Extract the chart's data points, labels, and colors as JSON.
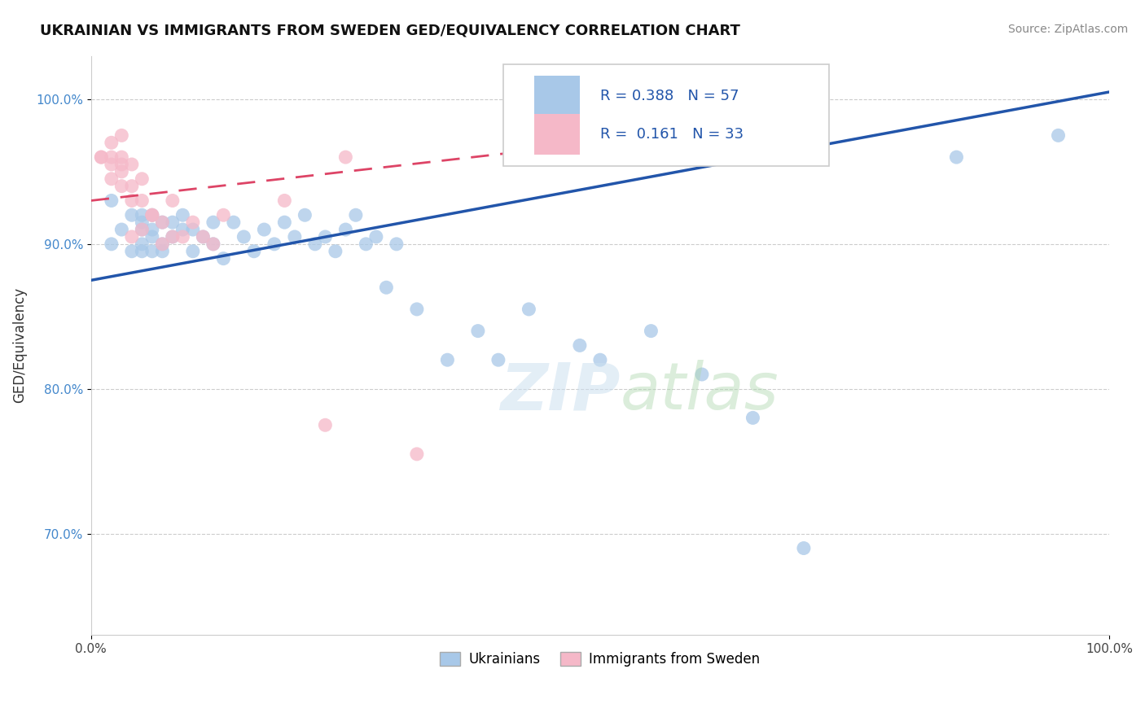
{
  "title": "UKRAINIAN VS IMMIGRANTS FROM SWEDEN GED/EQUIVALENCY CORRELATION CHART",
  "source": "Source: ZipAtlas.com",
  "ylabel": "GED/Equivalency",
  "xlim": [
    0.0,
    1.0
  ],
  "ylim": [
    0.63,
    1.03
  ],
  "y_ticks": [
    0.7,
    0.8,
    0.9,
    1.0
  ],
  "y_tick_labels": [
    "70.0%",
    "80.0%",
    "90.0%",
    "100.0%"
  ],
  "blue_R": 0.388,
  "blue_N": 57,
  "pink_R": 0.161,
  "pink_N": 33,
  "blue_color": "#a8c8e8",
  "pink_color": "#f5b8c8",
  "blue_line_color": "#2255aa",
  "pink_line_color": "#dd4466",
  "legend_R_color": "#2255aa",
  "blue_scatter_x": [
    0.02,
    0.02,
    0.03,
    0.04,
    0.04,
    0.05,
    0.05,
    0.05,
    0.05,
    0.05,
    0.06,
    0.06,
    0.06,
    0.06,
    0.07,
    0.07,
    0.07,
    0.08,
    0.08,
    0.09,
    0.09,
    0.1,
    0.1,
    0.11,
    0.12,
    0.12,
    0.13,
    0.14,
    0.15,
    0.16,
    0.17,
    0.18,
    0.19,
    0.2,
    0.21,
    0.22,
    0.23,
    0.24,
    0.25,
    0.26,
    0.27,
    0.28,
    0.29,
    0.3,
    0.32,
    0.35,
    0.38,
    0.4,
    0.43,
    0.48,
    0.5,
    0.55,
    0.6,
    0.65,
    0.7,
    0.85,
    0.95
  ],
  "blue_scatter_y": [
    0.9,
    0.93,
    0.91,
    0.92,
    0.895,
    0.915,
    0.9,
    0.895,
    0.91,
    0.92,
    0.905,
    0.895,
    0.91,
    0.92,
    0.9,
    0.915,
    0.895,
    0.915,
    0.905,
    0.91,
    0.92,
    0.895,
    0.91,
    0.905,
    0.9,
    0.915,
    0.89,
    0.915,
    0.905,
    0.895,
    0.91,
    0.9,
    0.915,
    0.905,
    0.92,
    0.9,
    0.905,
    0.895,
    0.91,
    0.92,
    0.9,
    0.905,
    0.87,
    0.9,
    0.855,
    0.82,
    0.84,
    0.82,
    0.855,
    0.83,
    0.82,
    0.84,
    0.81,
    0.78,
    0.69,
    0.96,
    0.975
  ],
  "pink_scatter_x": [
    0.01,
    0.01,
    0.02,
    0.02,
    0.02,
    0.02,
    0.03,
    0.03,
    0.03,
    0.03,
    0.03,
    0.04,
    0.04,
    0.04,
    0.04,
    0.05,
    0.05,
    0.05,
    0.06,
    0.06,
    0.07,
    0.07,
    0.08,
    0.08,
    0.09,
    0.1,
    0.11,
    0.12,
    0.13,
    0.19,
    0.23,
    0.25,
    0.32
  ],
  "pink_scatter_y": [
    0.96,
    0.96,
    0.955,
    0.945,
    0.96,
    0.97,
    0.95,
    0.94,
    0.955,
    0.96,
    0.975,
    0.94,
    0.93,
    0.955,
    0.905,
    0.945,
    0.93,
    0.91,
    0.92,
    0.92,
    0.9,
    0.915,
    0.905,
    0.93,
    0.905,
    0.915,
    0.905,
    0.9,
    0.92,
    0.93,
    0.775,
    0.96,
    0.755
  ],
  "blue_marker_size": 150,
  "pink_marker_size": 150
}
